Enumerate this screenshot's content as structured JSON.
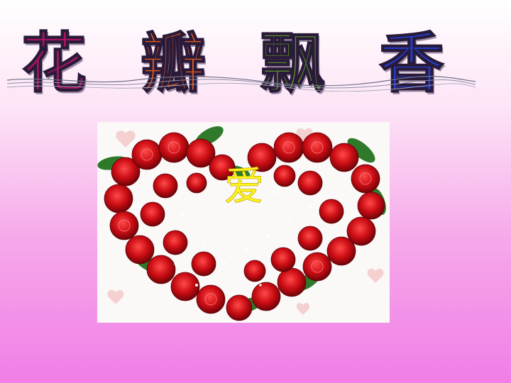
{
  "slide": {
    "title_chars": [
      "花",
      "瓣",
      "飘",
      "香"
    ],
    "title_colors": [
      "#a8155e",
      "#d9591b",
      "#5a9b24",
      "#1f3fcf"
    ],
    "center_word": "爱",
    "center_word_color": "#fff41c",
    "image_description_icon": "heart-rose-wreath-image",
    "background_colors": [
      "#ffffff",
      "#f07ee6"
    ]
  }
}
